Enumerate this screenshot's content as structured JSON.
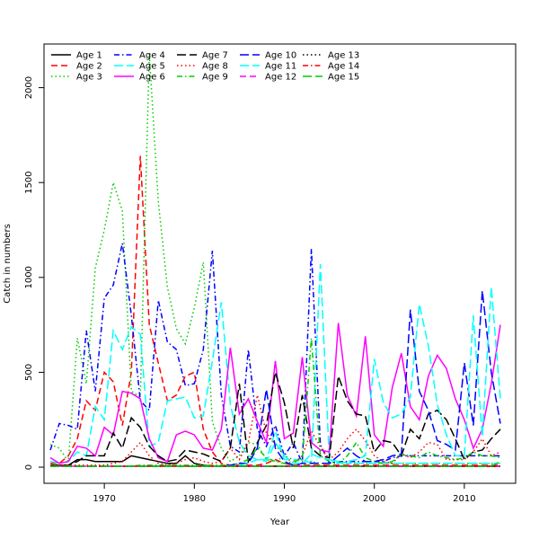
{
  "chart_data": {
    "type": "line",
    "xlabel": "Year",
    "ylabel": "Catch in numbers",
    "xlim": [
      1963.3,
      2015.7
    ],
    "ylim": [
      -85,
      2230
    ],
    "xticks": [
      1970,
      1980,
      1990,
      2000,
      2010
    ],
    "yticks": [
      0,
      500,
      1000,
      1500,
      2000
    ],
    "grid": false,
    "legend_position": "top-left",
    "x": [
      1964,
      1965,
      1966,
      1967,
      1968,
      1969,
      1970,
      1971,
      1972,
      1973,
      1974,
      1975,
      1976,
      1977,
      1978,
      1979,
      1980,
      1981,
      1982,
      1983,
      1984,
      1985,
      1986,
      1987,
      1988,
      1989,
      1990,
      1991,
      1992,
      1993,
      1994,
      1995,
      1996,
      1997,
      1998,
      1999,
      2000,
      2001,
      2002,
      2003,
      2004,
      2005,
      2006,
      2007,
      2008,
      2009,
      2010,
      2011,
      2012,
      2013,
      2014
    ],
    "series": [
      {
        "name": "Age 1",
        "color": "#000000",
        "dash": "solid",
        "values": [
          10,
          10,
          10,
          40,
          40,
          30,
          30,
          30,
          30,
          60,
          50,
          40,
          30,
          20,
          20,
          60,
          20,
          10,
          5,
          5,
          5,
          5,
          5,
          5,
          5,
          5,
          5,
          5,
          5,
          5,
          5,
          5,
          5,
          5,
          5,
          5,
          5,
          5,
          5,
          5,
          5,
          5,
          5,
          5,
          5,
          5,
          5,
          5,
          5,
          5,
          5
        ]
      },
      {
        "name": "Age 2",
        "color": "#ff0000",
        "dash": "dash",
        "values": [
          20,
          20,
          60,
          150,
          350,
          300,
          500,
          450,
          220,
          500,
          1640,
          750,
          550,
          350,
          380,
          480,
          500,
          200,
          80,
          20,
          10,
          10,
          10,
          10,
          20,
          40,
          20,
          10,
          10,
          10,
          10,
          10,
          10,
          10,
          10,
          10,
          10,
          10,
          10,
          10,
          10,
          10,
          10,
          10,
          10,
          10,
          10,
          10,
          10,
          10,
          10
        ]
      },
      {
        "name": "Age 3",
        "color": "#00cc00",
        "dash": "dot",
        "values": [
          120,
          100,
          30,
          680,
          440,
          1050,
          1250,
          1500,
          1350,
          400,
          370,
          2180,
          1400,
          950,
          730,
          650,
          840,
          1080,
          240,
          100,
          30,
          60,
          130,
          120,
          40,
          30,
          60,
          40,
          30,
          30,
          20,
          20,
          20,
          20,
          20,
          20,
          20,
          20,
          20,
          20,
          20,
          20,
          20,
          20,
          20,
          20,
          20,
          20,
          20,
          20,
          20
        ]
      },
      {
        "name": "Age 4",
        "color": "#0000ff",
        "dash": "dashdot",
        "values": [
          90,
          230,
          220,
          200,
          720,
          400,
          890,
          960,
          1180,
          800,
          350,
          300,
          880,
          660,
          620,
          430,
          440,
          620,
          1140,
          380,
          110,
          80,
          620,
          200,
          110,
          220,
          60,
          130,
          20,
          1150,
          120,
          20,
          30,
          30,
          30,
          30,
          30,
          30,
          50,
          60,
          60,
          60,
          60,
          60,
          60,
          60,
          60,
          60,
          60,
          60,
          60
        ]
      },
      {
        "name": "Age 5",
        "color": "#00ffff",
        "dash": "longdash",
        "values": [
          30,
          20,
          30,
          80,
          60,
          320,
          250,
          720,
          620,
          740,
          700,
          110,
          130,
          350,
          360,
          370,
          260,
          270,
          560,
          870,
          330,
          130,
          60,
          40,
          40,
          190,
          40,
          40,
          40,
          20,
          1070,
          40,
          30,
          20,
          20,
          20,
          20,
          20,
          20,
          20,
          20,
          20,
          20,
          20,
          20,
          20,
          20,
          20,
          20,
          20,
          20
        ]
      },
      {
        "name": "Age 6",
        "color": "#ff00ff",
        "dash": "solid",
        "values": [
          50,
          20,
          30,
          110,
          100,
          60,
          210,
          170,
          400,
          390,
          360,
          150,
          50,
          30,
          170,
          190,
          170,
          100,
          90,
          200,
          630,
          280,
          360,
          240,
          130,
          560,
          150,
          180,
          580,
          130,
          90,
          80,
          760,
          380,
          270,
          690,
          170,
          110,
          420,
          600,
          320,
          250,
          480,
          590,
          520,
          360,
          250,
          100,
          200,
          440,
          750
        ]
      },
      {
        "name": "Age 7",
        "color": "#000000",
        "dash": "longdash",
        "values": [
          10,
          10,
          10,
          30,
          60,
          60,
          60,
          180,
          100,
          260,
          210,
          110,
          60,
          30,
          40,
          90,
          80,
          70,
          50,
          30,
          100,
          440,
          30,
          130,
          220,
          500,
          340,
          100,
          380,
          100,
          60,
          50,
          480,
          350,
          280,
          270,
          80,
          140,
          130,
          60,
          200,
          150,
          280,
          300,
          250,
          150,
          40,
          80,
          90,
          150,
          200
        ]
      },
      {
        "name": "Age 8",
        "color": "#ff0000",
        "dash": "dot",
        "values": [
          10,
          10,
          10,
          10,
          10,
          10,
          10,
          20,
          30,
          80,
          130,
          60,
          20,
          10,
          20,
          40,
          50,
          30,
          20,
          30,
          100,
          40,
          130,
          380,
          180,
          120,
          60,
          20,
          60,
          190,
          110,
          40,
          80,
          150,
          200,
          140,
          60,
          30,
          20,
          70,
          50,
          80,
          130,
          120,
          40,
          40,
          40,
          80,
          150,
          60,
          80
        ]
      },
      {
        "name": "Age 9",
        "color": "#00cc00",
        "dash": "dashdot",
        "values": [
          5,
          5,
          5,
          5,
          5,
          5,
          5,
          5,
          5,
          5,
          10,
          10,
          10,
          10,
          10,
          10,
          10,
          10,
          10,
          10,
          10,
          20,
          40,
          100,
          50,
          30,
          20,
          30,
          40,
          680,
          60,
          30,
          20,
          60,
          130,
          50,
          30,
          20,
          30,
          70,
          60,
          50,
          80,
          60,
          50,
          40,
          50,
          80,
          60,
          60,
          50
        ]
      },
      {
        "name": "Age 10",
        "color": "#0000ff",
        "dash": "longdash",
        "values": [
          5,
          5,
          5,
          5,
          5,
          5,
          5,
          5,
          5,
          5,
          5,
          5,
          5,
          5,
          5,
          5,
          5,
          5,
          5,
          5,
          10,
          20,
          20,
          100,
          410,
          100,
          30,
          10,
          20,
          20,
          20,
          20,
          60,
          100,
          60,
          30,
          30,
          40,
          60,
          70,
          830,
          400,
          300,
          140,
          120,
          90,
          550,
          220,
          930,
          500,
          230
        ]
      },
      {
        "name": "Age 11",
        "color": "#00ffff",
        "dash": "longdash",
        "values": [
          5,
          5,
          5,
          5,
          5,
          5,
          5,
          5,
          5,
          5,
          5,
          5,
          5,
          5,
          5,
          5,
          5,
          5,
          5,
          5,
          5,
          10,
          20,
          40,
          30,
          130,
          60,
          20,
          20,
          70,
          50,
          40,
          20,
          30,
          40,
          60,
          570,
          340,
          260,
          280,
          370,
          860,
          640,
          330,
          170,
          60,
          60,
          800,
          160,
          950,
          360
        ]
      },
      {
        "name": "Age 12",
        "color": "#ff00ff",
        "dash": "dash",
        "values": [
          5,
          5,
          5,
          5,
          5,
          5,
          5,
          5,
          5,
          5,
          5,
          5,
          5,
          5,
          5,
          5,
          5,
          5,
          5,
          5,
          5,
          5,
          5,
          5,
          5,
          5,
          5,
          5,
          5,
          5,
          5,
          5,
          5,
          5,
          5,
          5,
          5,
          5,
          5,
          5,
          5,
          5,
          5,
          5,
          5,
          5,
          5,
          5,
          5,
          5,
          5
        ]
      },
      {
        "name": "Age 13",
        "color": "#000000",
        "dash": "dot",
        "values": [
          5,
          5,
          5,
          5,
          5,
          5,
          5,
          5,
          5,
          5,
          5,
          5,
          5,
          5,
          5,
          5,
          5,
          5,
          5,
          5,
          5,
          5,
          5,
          5,
          5,
          5,
          5,
          5,
          5,
          5,
          5,
          5,
          5,
          5,
          5,
          5,
          5,
          5,
          5,
          5,
          5,
          5,
          5,
          5,
          5,
          5,
          5,
          5,
          5,
          5,
          5
        ]
      },
      {
        "name": "Age 14",
        "color": "#ff0000",
        "dash": "dashdot",
        "values": [
          5,
          5,
          5,
          5,
          5,
          5,
          5,
          5,
          5,
          5,
          5,
          5,
          5,
          5,
          5,
          5,
          5,
          5,
          5,
          5,
          5,
          5,
          5,
          5,
          5,
          5,
          5,
          5,
          5,
          5,
          5,
          5,
          5,
          5,
          5,
          5,
          5,
          5,
          5,
          5,
          5,
          5,
          5,
          5,
          5,
          5,
          5,
          5,
          5,
          5,
          5
        ]
      },
      {
        "name": "Age 15",
        "color": "#00cc00",
        "dash": "longdash",
        "values": [
          5,
          5,
          5,
          5,
          5,
          5,
          5,
          5,
          5,
          5,
          5,
          5,
          5,
          5,
          5,
          5,
          5,
          5,
          5,
          5,
          5,
          5,
          5,
          5,
          5,
          5,
          5,
          5,
          5,
          5,
          5,
          5,
          5,
          5,
          5,
          5,
          5,
          5,
          5,
          5,
          5,
          5,
          5,
          5,
          5,
          5,
          5,
          5,
          5,
          5,
          30
        ]
      }
    ]
  }
}
